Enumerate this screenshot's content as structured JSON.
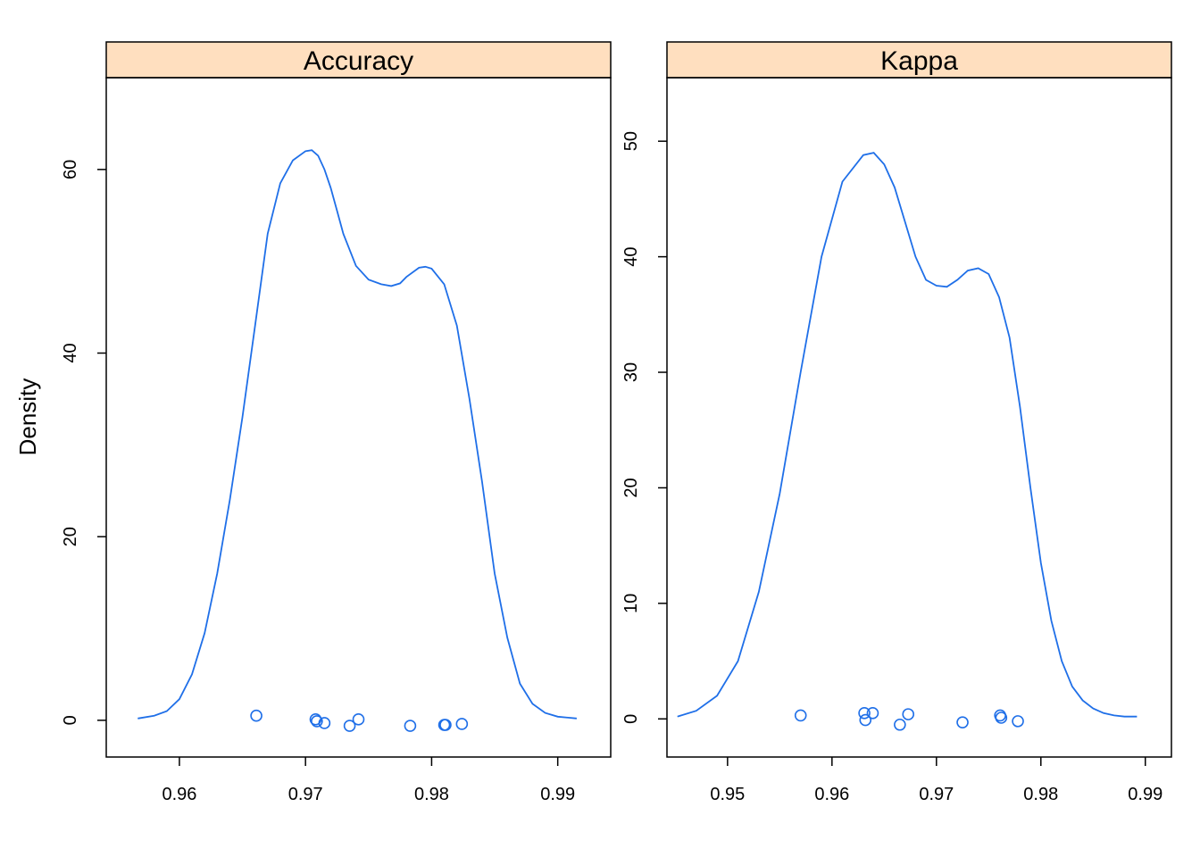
{
  "chart_data": {
    "type": "line",
    "ylabel": "Density",
    "colors": {
      "line": "#1f6fe8",
      "point": "#1f6fe8",
      "strip": "#ffdfbf",
      "frame": "#000000"
    },
    "panels": [
      {
        "title": "Accuracy",
        "xlim": [
          0.9542,
          0.9942
        ],
        "ylim": [
          -4,
          70
        ],
        "xticks": [
          0.96,
          0.97,
          0.98,
          0.99
        ],
        "xtick_labels": [
          "0.96",
          "0.97",
          "0.98",
          "0.99"
        ],
        "yticks": [
          0,
          20,
          40,
          60
        ],
        "ytick_labels": [
          "0",
          "20",
          "40",
          "60"
        ],
        "density": {
          "x": [
            0.9567,
            0.958,
            0.959,
            0.96,
            0.961,
            0.962,
            0.963,
            0.964,
            0.965,
            0.966,
            0.967,
            0.968,
            0.969,
            0.97,
            0.9705,
            0.971,
            0.9715,
            0.972,
            0.9725,
            0.973,
            0.974,
            0.975,
            0.976,
            0.9768,
            0.9775,
            0.978,
            0.979,
            0.9795,
            0.98,
            0.981,
            0.982,
            0.983,
            0.984,
            0.985,
            0.986,
            0.987,
            0.988,
            0.989,
            0.99,
            0.9915
          ],
          "y": [
            0.2,
            0.5,
            1.0,
            2.3,
            5.0,
            9.5,
            16.0,
            24.0,
            33.0,
            43.0,
            53.0,
            58.5,
            61.0,
            62.0,
            62.1,
            61.5,
            60.0,
            58.0,
            55.5,
            53.0,
            49.5,
            48.0,
            47.5,
            47.3,
            47.6,
            48.3,
            49.3,
            49.4,
            49.2,
            47.5,
            43.0,
            35.0,
            26.0,
            16.0,
            9.0,
            4.0,
            1.8,
            0.8,
            0.4,
            0.2
          ]
        },
        "points": {
          "x": [
            0.9661,
            0.9708,
            0.9709,
            0.9715,
            0.9735,
            0.9742,
            0.9783,
            0.981,
            0.9811,
            0.9824
          ],
          "y": [
            0.5,
            0.1,
            -0.1,
            -0.3,
            -0.6,
            0.1,
            -0.6,
            -0.5,
            -0.5,
            -0.4
          ]
        }
      },
      {
        "title": "Kappa",
        "xlim": [
          0.9442,
          0.9925
        ],
        "ylim": [
          -3.3,
          55.5
        ],
        "xticks": [
          0.95,
          0.96,
          0.97,
          0.98,
          0.99
        ],
        "xtick_labels": [
          "0.95",
          "0.96",
          "0.97",
          "0.98",
          "0.99"
        ],
        "yticks": [
          0,
          10,
          20,
          30,
          40,
          50
        ],
        "ytick_labels": [
          "0",
          "10",
          "20",
          "30",
          "40",
          "50"
        ],
        "density": {
          "x": [
            0.9452,
            0.947,
            0.949,
            0.951,
            0.953,
            0.955,
            0.957,
            0.959,
            0.961,
            0.963,
            0.964,
            0.965,
            0.966,
            0.967,
            0.968,
            0.969,
            0.97,
            0.971,
            0.972,
            0.973,
            0.974,
            0.975,
            0.976,
            0.977,
            0.978,
            0.979,
            0.98,
            0.981,
            0.982,
            0.983,
            0.984,
            0.985,
            0.986,
            0.987,
            0.988,
            0.989,
            0.9892
          ],
          "y": [
            0.2,
            0.7,
            2.0,
            5.0,
            11.0,
            19.5,
            30.0,
            40.0,
            46.5,
            48.8,
            49.0,
            48.0,
            46.0,
            43.0,
            40.0,
            38.0,
            37.5,
            37.4,
            38.0,
            38.8,
            39.0,
            38.5,
            36.5,
            33.0,
            27.0,
            20.0,
            13.5,
            8.5,
            5.0,
            2.8,
            1.6,
            0.9,
            0.5,
            0.3,
            0.2,
            0.2,
            0.2
          ]
        },
        "points": {
          "x": [
            0.957,
            0.9631,
            0.9632,
            0.9639,
            0.9665,
            0.9673,
            0.9725,
            0.9761,
            0.9762,
            0.9778
          ],
          "y": [
            0.3,
            0.5,
            -0.1,
            0.5,
            -0.5,
            0.4,
            -0.3,
            0.3,
            0.1,
            -0.2
          ]
        }
      }
    ]
  }
}
